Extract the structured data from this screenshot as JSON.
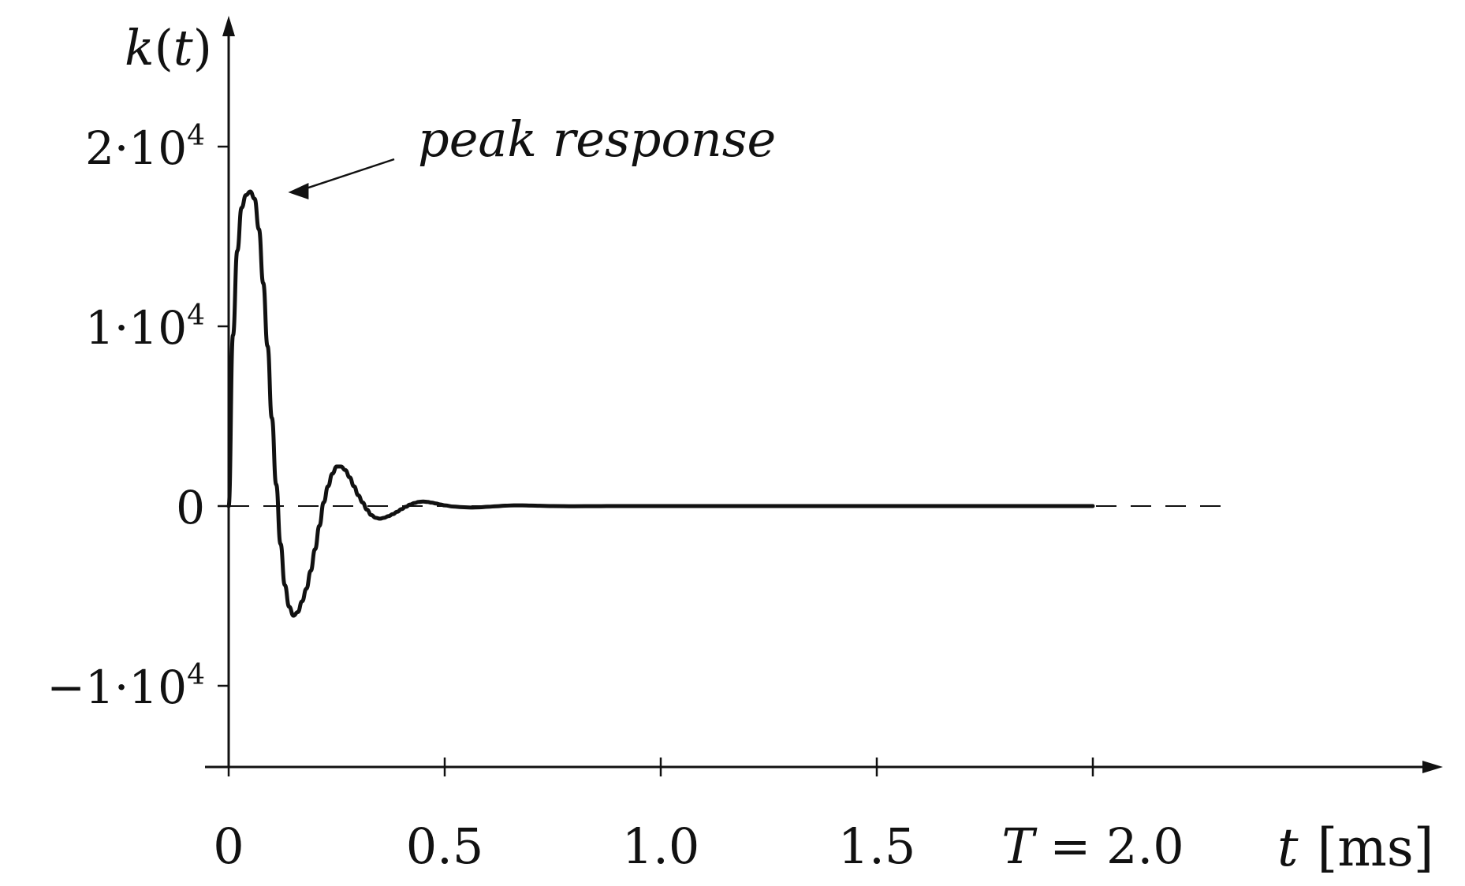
{
  "chart_data": {
    "type": "line",
    "title": "",
    "xlabel_var": "t",
    "xlabel_unit": "[ms]",
    "ylabel_fn": "k",
    "ylabel_open": "(",
    "ylabel_arg": "t",
    "ylabel_close": ")",
    "xlim": [
      0,
      2.75
    ],
    "ylim": [
      -14500,
      27000
    ],
    "grid": false,
    "legend": "none",
    "x_ticks": [
      0,
      0.5,
      1.0,
      1.5,
      2.0
    ],
    "x_tick_labels": [
      "0",
      "0.5",
      "1.0",
      "1.5",
      ""
    ],
    "x_last_tick_prefix": "T",
    "x_last_tick_value": " = 2.0",
    "y_ticks": [
      -10000,
      0,
      10000,
      20000
    ],
    "y_tick_labels": [
      {
        "mantissa": "−1·10",
        "exponent": "4"
      },
      {
        "mantissa": "0",
        "exponent": ""
      },
      {
        "mantissa": "1·10",
        "exponent": "4"
      },
      {
        "mantissa": "2·10",
        "exponent": "4"
      }
    ],
    "annotation": {
      "text": "peak response",
      "target_x": 0.05,
      "target_y": 17500
    },
    "dashed_baseline_until": 2.3,
    "series": [
      {
        "x": [
          0.0,
          0.01,
          0.02,
          0.03,
          0.04,
          0.05,
          0.06,
          0.07,
          0.08,
          0.09,
          0.1,
          0.11,
          0.12,
          0.13,
          0.14,
          0.15,
          0.16,
          0.17,
          0.18,
          0.19,
          0.2,
          0.21,
          0.22,
          0.23,
          0.24,
          0.25,
          0.26,
          0.27,
          0.28,
          0.29,
          0.3,
          0.31,
          0.32,
          0.33,
          0.34,
          0.35,
          0.36,
          0.37,
          0.38,
          0.39,
          0.4,
          0.41,
          0.42,
          0.43,
          0.44,
          0.45,
          0.46,
          0.47,
          0.48,
          0.49,
          0.5,
          0.52,
          0.54,
          0.56,
          0.58,
          0.6,
          0.62,
          0.64,
          0.66,
          0.68,
          0.7,
          0.72,
          0.75,
          0.8,
          0.85,
          0.9,
          1.0,
          1.2,
          1.5,
          1.8,
          2.0
        ],
        "y": [
          0,
          9500,
          14200,
          16600,
          17300,
          17500,
          17100,
          15400,
          12400,
          8900,
          4900,
          1200,
          -2100,
          -4400,
          -5600,
          -6100,
          -5900,
          -5300,
          -4600,
          -3600,
          -2400,
          -1100,
          200,
          1100,
          1800,
          2200,
          2200,
          2000,
          1600,
          1100,
          600,
          200,
          -200,
          -500,
          -650,
          -700,
          -650,
          -560,
          -450,
          -320,
          -170,
          -40,
          80,
          170,
          230,
          250,
          230,
          190,
          140,
          90,
          40,
          -30,
          -60,
          -80,
          -70,
          -40,
          -10,
          20,
          40,
          40,
          30,
          15,
          0,
          -10,
          -5,
          0,
          0,
          0,
          0,
          0,
          0
        ]
      }
    ]
  }
}
